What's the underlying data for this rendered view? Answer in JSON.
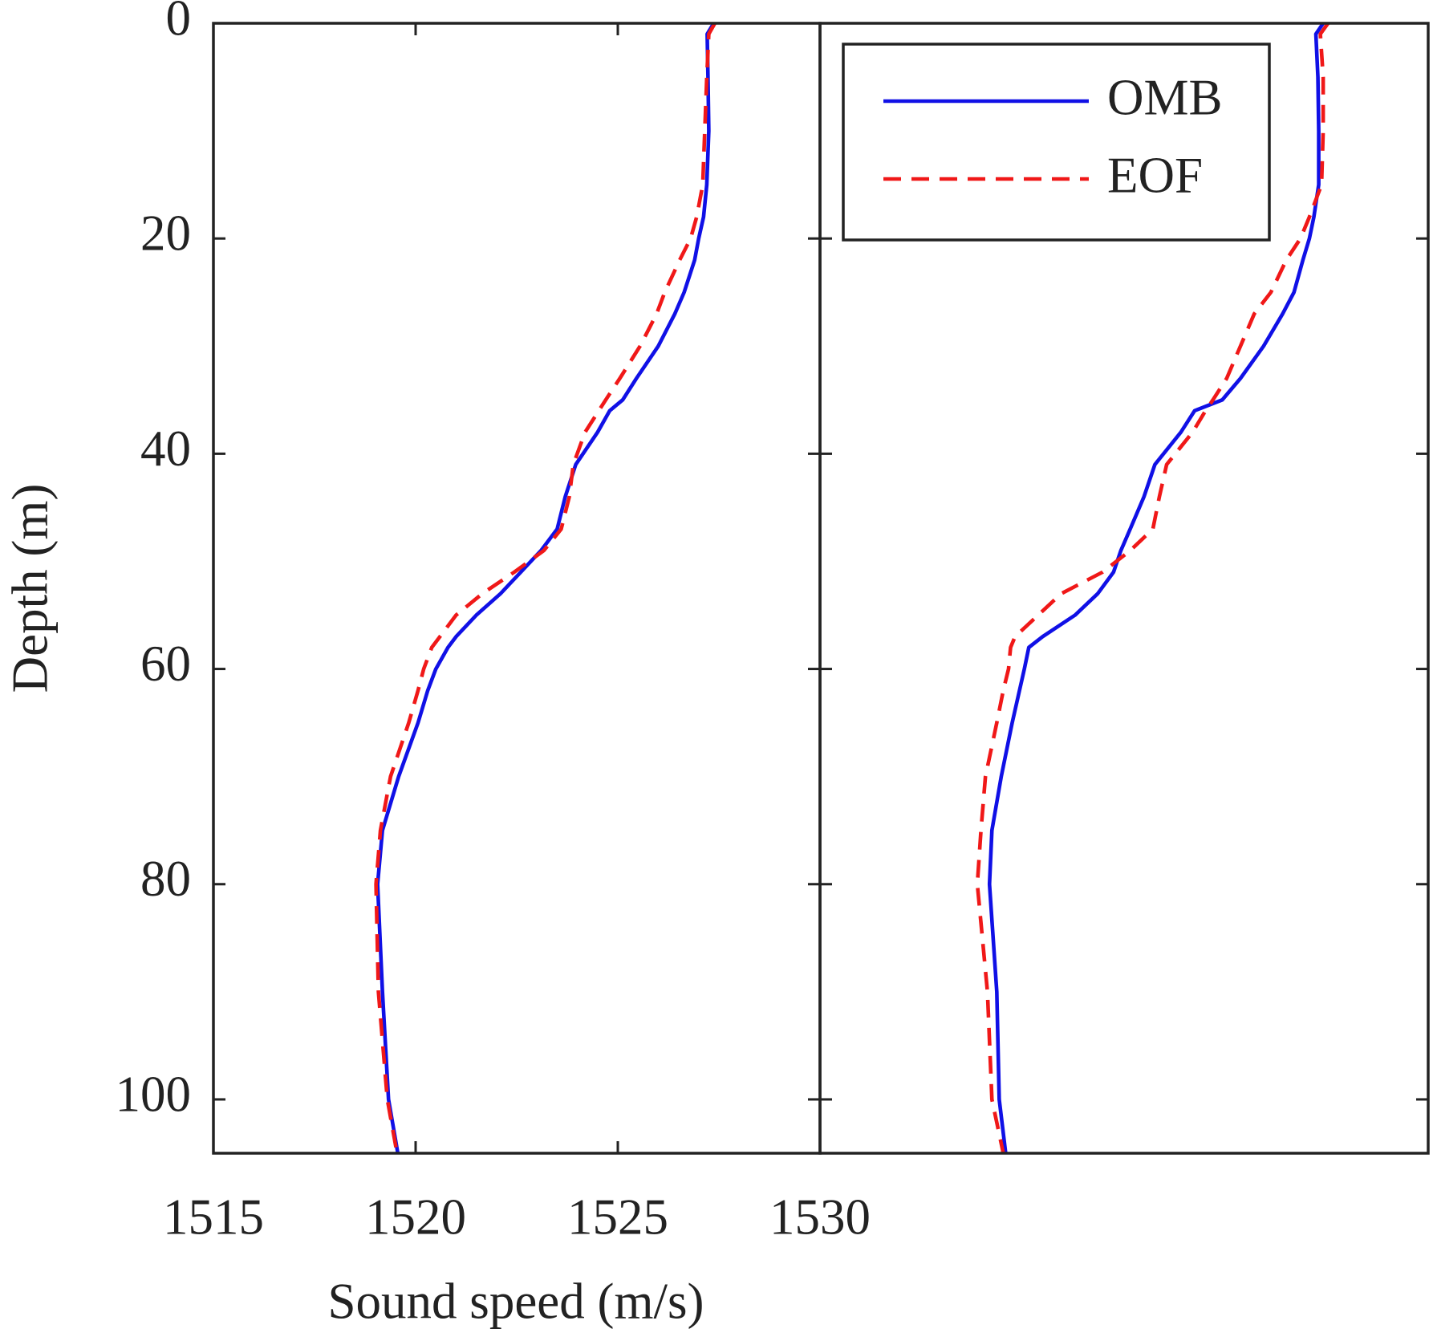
{
  "chart_data": [
    {
      "type": "line",
      "orientation": "vertical",
      "y_inverted": true,
      "xlabel": "Sound speed (m/s)",
      "ylabel": "Depth (m)",
      "xlim": [
        1515,
        1530
      ],
      "xticks": [
        1515,
        1520,
        1525,
        1530
      ],
      "ylim": [
        0,
        105
      ],
      "yticks": [
        0,
        20,
        40,
        60,
        80,
        100
      ],
      "show_tick_labels": true,
      "y": [
        0,
        1,
        5,
        10,
        15,
        18,
        20,
        22,
        25,
        27,
        30,
        33,
        35,
        36,
        38,
        41,
        44,
        47,
        49,
        51,
        53,
        55,
        57,
        58,
        60,
        62,
        65,
        70,
        75,
        80,
        90,
        100,
        105
      ],
      "series": [
        {
          "color": "#1010e6",
          "dash": "solid",
          "values": [
            1527.37,
            1527.21,
            1527.23,
            1527.25,
            1527.2,
            1527.12,
            1527.0,
            1526.9,
            1526.64,
            1526.41,
            1526.0,
            1525.46,
            1525.12,
            1524.8,
            1524.5,
            1523.96,
            1523.7,
            1523.5,
            1523.1,
            1522.6,
            1522.1,
            1521.5,
            1521.0,
            1520.8,
            1520.5,
            1520.3,
            1520.06,
            1519.58,
            1519.18,
            1519.06,
            1519.18,
            1519.33,
            1519.56
          ]
        },
        {
          "color": "#f01818",
          "dash": "dashed",
          "values": [
            1527.4,
            1527.25,
            1527.2,
            1527.15,
            1527.1,
            1526.95,
            1526.8,
            1526.53,
            1526.16,
            1525.96,
            1525.55,
            1525.05,
            1524.7,
            1524.53,
            1524.19,
            1523.9,
            1523.8,
            1523.6,
            1523.17,
            1522.44,
            1521.65,
            1521.0,
            1520.6,
            1520.4,
            1520.2,
            1520.06,
            1519.83,
            1519.38,
            1519.13,
            1519.02,
            1519.08,
            1519.3,
            1519.54
          ]
        }
      ]
    },
    {
      "type": "line",
      "orientation": "vertical",
      "y_inverted": true,
      "xlim": [
        1515,
        1530
      ],
      "ylim": [
        0,
        105
      ],
      "yticks": [
        0,
        20,
        40,
        60,
        80,
        100
      ],
      "show_tick_labels": false,
      "legend": "upper left",
      "y": [
        0,
        1,
        5,
        10,
        15,
        18,
        20,
        22,
        25,
        27,
        30,
        33,
        35,
        36,
        38,
        41,
        44,
        47,
        49,
        51,
        53,
        55,
        57,
        58,
        60,
        62,
        65,
        70,
        75,
        80,
        90,
        100,
        105
      ],
      "series": [
        {
          "name": "OMB",
          "color": "#1010e6",
          "dash": "solid",
          "values": [
            1527.41,
            1527.23,
            1527.28,
            1527.3,
            1527.3,
            1527.18,
            1527.07,
            1526.91,
            1526.69,
            1526.41,
            1525.94,
            1525.37,
            1524.92,
            1524.24,
            1523.9,
            1523.26,
            1522.99,
            1522.65,
            1522.42,
            1522.24,
            1521.85,
            1521.29,
            1520.49,
            1520.15,
            1520.04,
            1519.92,
            1519.74,
            1519.47,
            1519.24,
            1519.18,
            1519.36,
            1519.42,
            1519.58
          ]
        },
        {
          "name": "EOF",
          "color": "#f01818",
          "dash": "dashed",
          "values": [
            1527.53,
            1527.34,
            1527.41,
            1527.41,
            1527.37,
            1527.07,
            1526.85,
            1526.5,
            1526.12,
            1525.71,
            1525.37,
            1525.03,
            1524.69,
            1524.51,
            1524.19,
            1523.55,
            1523.37,
            1523.21,
            1522.65,
            1521.97,
            1520.95,
            1520.38,
            1519.81,
            1519.7,
            1519.65,
            1519.52,
            1519.36,
            1519.08,
            1518.97,
            1518.88,
            1519.13,
            1519.24,
            1519.52
          ]
        }
      ]
    }
  ]
}
